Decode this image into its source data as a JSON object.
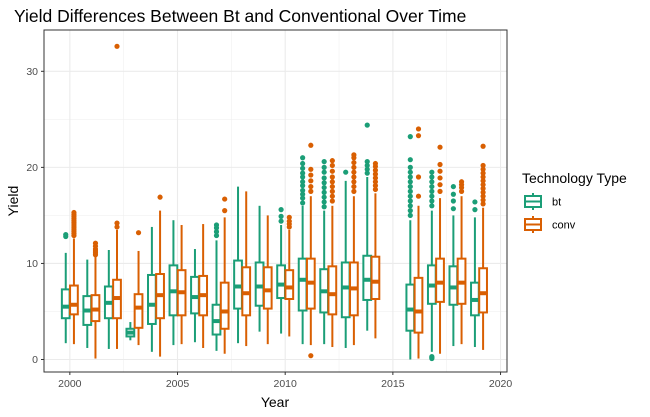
{
  "chart_data": {
    "type": "boxplot",
    "title": "Yield Differences Between Bt and Conventional Over Time",
    "xlabel": "Year",
    "ylabel": "Yield",
    "xlim": [
      1998.8,
      2020.3
    ],
    "ylim": [
      -1.3,
      34.3
    ],
    "x_ticks": [
      2000,
      2005,
      2010,
      2015,
      2020
    ],
    "y_ticks": [
      0,
      10,
      20,
      30
    ],
    "grid": true,
    "legend": {
      "title": "Technology Type",
      "position": "right"
    },
    "series": [
      {
        "name": "bt",
        "color": "#1b9e77",
        "boxes": [
          {
            "year": 2000,
            "min": 1.7,
            "q1": 4.3,
            "median": 5.5,
            "q3": 7.3,
            "max": 11.1,
            "outliers": [
              12.8,
              13.0
            ]
          },
          {
            "year": 2001,
            "min": 1.2,
            "q1": 3.6,
            "median": 5.1,
            "q3": 6.6,
            "max": 10.4,
            "outliers": []
          },
          {
            "year": 2002,
            "min": 1.1,
            "q1": 4.3,
            "median": 5.9,
            "q3": 7.6,
            "max": 11.4,
            "outliers": []
          },
          {
            "year": 2003,
            "min": 2.0,
            "q1": 2.4,
            "median": 2.8,
            "q3": 3.2,
            "max": 3.9,
            "outliers": []
          },
          {
            "year": 2004,
            "min": 0.8,
            "q1": 3.7,
            "median": 5.7,
            "q3": 8.8,
            "max": 13.8,
            "outliers": []
          },
          {
            "year": 2005,
            "min": 1.5,
            "q1": 4.6,
            "median": 7.1,
            "q3": 9.8,
            "max": 14.5,
            "outliers": []
          },
          {
            "year": 2006,
            "min": 1.8,
            "q1": 4.8,
            "median": 6.5,
            "q3": 8.6,
            "max": 11.5,
            "outliers": []
          },
          {
            "year": 2007,
            "min": 0.9,
            "q1": 2.6,
            "median": 4.0,
            "q3": 5.7,
            "max": 12.4,
            "outliers": [
              12.9,
              13.3,
              13.7,
              14.0
            ]
          },
          {
            "year": 2008,
            "min": 1.7,
            "q1": 5.3,
            "median": 7.6,
            "q3": 10.3,
            "max": 18.0,
            "outliers": []
          },
          {
            "year": 2009,
            "min": 2.9,
            "q1": 5.6,
            "median": 7.6,
            "q3": 10.1,
            "max": 16.0,
            "outliers": []
          },
          {
            "year": 2010,
            "min": 2.7,
            "q1": 6.4,
            "median": 7.8,
            "q3": 9.8,
            "max": 14.0,
            "outliers": [
              14.4,
              14.9,
              15.6
            ]
          },
          {
            "year": 2011,
            "min": 1.6,
            "q1": 5.1,
            "median": 8.3,
            "q3": 10.5,
            "max": 16.0,
            "outliers": [
              16.3,
              16.8,
              17.2,
              17.6,
              18.1,
              18.5,
              19.0,
              19.4,
              19.9,
              20.4,
              21.0
            ]
          },
          {
            "year": 2012,
            "min": 1.6,
            "q1": 4.9,
            "median": 7.1,
            "q3": 9.4,
            "max": 15.5,
            "outliers": [
              15.9,
              16.4,
              16.9,
              17.4,
              17.9,
              18.4,
              18.9,
              19.5,
              20.0,
              20.6
            ]
          },
          {
            "year": 2013,
            "min": 1.2,
            "q1": 4.4,
            "median": 7.5,
            "q3": 10.1,
            "max": 18.6,
            "outliers": [
              19.5
            ]
          },
          {
            "year": 2014,
            "min": 3.0,
            "q1": 6.2,
            "median": 8.3,
            "q3": 10.8,
            "max": 19.0,
            "outliers": [
              19.4,
              19.8,
              20.2,
              20.6,
              24.4
            ]
          },
          {
            "year": 2016,
            "min": 0.0,
            "q1": 3.0,
            "median": 5.2,
            "q3": 7.8,
            "max": 14.5,
            "outliers": [
              15.0,
              15.5,
              16.0,
              16.5,
              17.0,
              17.5,
              18.0,
              18.5,
              19.0,
              19.5,
              20.0,
              20.8,
              23.2
            ]
          },
          {
            "year": 2017,
            "min": 0.8,
            "q1": 5.8,
            "median": 7.7,
            "q3": 9.8,
            "max": 15.5,
            "outliers": [
              0.1,
              0.2,
              0.3,
              16.0,
              16.5,
              17.0,
              17.5,
              18.0,
              18.5,
              19.0,
              19.5
            ]
          },
          {
            "year": 2018,
            "min": 1.4,
            "q1": 5.7,
            "median": 7.5,
            "q3": 9.7,
            "max": 15.0,
            "outliers": [
              15.7,
              16.5,
              17.2,
              18.0
            ]
          },
          {
            "year": 2019,
            "min": 1.3,
            "q1": 4.6,
            "median": 6.2,
            "q3": 8.0,
            "max": 14.8,
            "outliers": [
              15.6,
              16.4
            ]
          }
        ]
      },
      {
        "name": "conv",
        "color": "#d95f02",
        "boxes": [
          {
            "year": 2000,
            "min": 1.6,
            "q1": 4.7,
            "median": 5.7,
            "q3": 7.7,
            "max": 12.6,
            "outliers": [
              12.9,
              13.1,
              13.3,
              13.5,
              13.7,
              13.9,
              14.1,
              14.3,
              14.5,
              14.7,
              14.9,
              15.1,
              15.3
            ]
          },
          {
            "year": 2001,
            "min": 0.1,
            "q1": 4.0,
            "median": 5.2,
            "q3": 6.7,
            "max": 10.7,
            "outliers": [
              10.9,
              11.1,
              11.3,
              11.5,
              11.8,
              12.1
            ]
          },
          {
            "year": 2002,
            "min": 1.1,
            "q1": 4.3,
            "median": 6.4,
            "q3": 8.3,
            "max": 13.5,
            "outliers": [
              13.8,
              14.2,
              32.6
            ]
          },
          {
            "year": 2003,
            "min": 1.5,
            "q1": 3.3,
            "median": 5.4,
            "q3": 6.8,
            "max": 11.3,
            "outliers": [
              13.2
            ]
          },
          {
            "year": 2004,
            "min": 0.3,
            "q1": 4.3,
            "median": 6.7,
            "q3": 8.9,
            "max": 15.5,
            "outliers": [
              16.9
            ]
          },
          {
            "year": 2005,
            "min": 1.6,
            "q1": 4.6,
            "median": 7.0,
            "q3": 9.3,
            "max": 14.0,
            "outliers": []
          },
          {
            "year": 2006,
            "min": 1.2,
            "q1": 4.6,
            "median": 6.7,
            "q3": 8.7,
            "max": 14.1,
            "outliers": []
          },
          {
            "year": 2007,
            "min": 0.6,
            "q1": 3.2,
            "median": 5.0,
            "q3": 8.0,
            "max": 14.8,
            "outliers": [
              15.5,
              16.7
            ]
          },
          {
            "year": 2008,
            "min": 1.4,
            "q1": 4.6,
            "median": 6.9,
            "q3": 9.6,
            "max": 17.5,
            "outliers": []
          },
          {
            "year": 2009,
            "min": 1.6,
            "q1": 5.3,
            "median": 7.2,
            "q3": 9.6,
            "max": 15.0,
            "outliers": []
          },
          {
            "year": 2010,
            "min": 2.4,
            "q1": 6.3,
            "median": 7.5,
            "q3": 9.3,
            "max": 13.5,
            "outliers": [
              13.8,
              14.1,
              14.4,
              14.8
            ]
          },
          {
            "year": 2011,
            "min": 1.5,
            "q1": 5.3,
            "median": 8.0,
            "q3": 10.5,
            "max": 17.0,
            "outliers": [
              0.4,
              17.5,
              18.0,
              18.6,
              19.2,
              19.8,
              22.3
            ]
          },
          {
            "year": 2012,
            "min": 1.3,
            "q1": 4.7,
            "median": 6.8,
            "q3": 9.7,
            "max": 16.0,
            "outliers": [
              16.5,
              17.0,
              17.5,
              18.0,
              18.5,
              19.0,
              19.6,
              20.2,
              20.7
            ]
          },
          {
            "year": 2013,
            "min": 1.5,
            "q1": 4.6,
            "median": 7.4,
            "q3": 10.1,
            "max": 17.0,
            "outliers": [
              17.5,
              18.0,
              18.5,
              19.0,
              19.5,
              20.0,
              20.5,
              21.0,
              21.3
            ]
          },
          {
            "year": 2014,
            "min": 2.2,
            "q1": 6.3,
            "median": 8.1,
            "q3": 10.7,
            "max": 17.3,
            "outliers": [
              17.7,
              18.1,
              18.5,
              18.9,
              19.3,
              19.7,
              20.1,
              20.4
            ]
          },
          {
            "year": 2016,
            "min": 0.1,
            "q1": 2.8,
            "median": 5.0,
            "q3": 8.5,
            "max": 16.0,
            "outliers": [
              17.0,
              19.0,
              23.3,
              24.0
            ]
          },
          {
            "year": 2017,
            "min": 0.6,
            "q1": 6.0,
            "median": 8.0,
            "q3": 10.5,
            "max": 16.8,
            "outliers": [
              17.5,
              18.2,
              18.9,
              19.6,
              20.3,
              22.1
            ]
          },
          {
            "year": 2018,
            "min": 1.6,
            "q1": 5.8,
            "median": 8.0,
            "q3": 10.5,
            "max": 17.0,
            "outliers": [
              17.5,
              17.9,
              18.2,
              18.5
            ]
          },
          {
            "year": 2019,
            "min": 1.0,
            "q1": 4.9,
            "median": 6.9,
            "q3": 9.5,
            "max": 15.8,
            "outliers": [
              16.2,
              16.6,
              17.0,
              17.4,
              17.8,
              18.2,
              18.6,
              19.0,
              19.4,
              19.8,
              20.2,
              22.2
            ]
          }
        ]
      }
    ]
  }
}
